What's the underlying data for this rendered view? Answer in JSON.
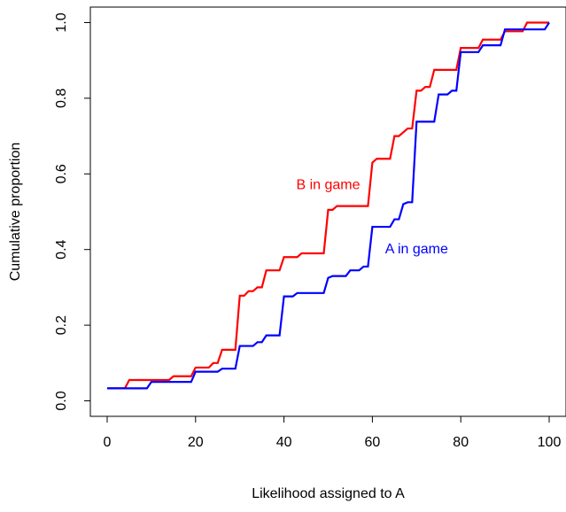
{
  "chart_data": {
    "type": "line",
    "title": "",
    "xlabel": "Likelihood assigned to A",
    "ylabel": "Cumulative proportion",
    "xlim": [
      0,
      100
    ],
    "ylim": [
      0,
      1
    ],
    "x_ticks": [
      0,
      20,
      40,
      60,
      80,
      100
    ],
    "y_ticks": [
      0.0,
      0.2,
      0.4,
      0.6,
      0.8,
      1.0
    ],
    "x_tick_labels": [
      "0",
      "20",
      "40",
      "60",
      "80",
      "100"
    ],
    "y_tick_labels": [
      "0.0",
      "0.2",
      "0.4",
      "0.6",
      "0.8",
      "1.0"
    ],
    "grid": false,
    "series": [
      {
        "name": "B in game",
        "color": "#ff0000",
        "label_anchor": [
          50,
          0.56
        ],
        "step_points": [
          [
            0,
            0.033
          ],
          [
            4,
            0.033
          ],
          [
            5,
            0.055
          ],
          [
            14,
            0.055
          ],
          [
            15,
            0.065
          ],
          [
            19,
            0.065
          ],
          [
            20,
            0.088
          ],
          [
            23,
            0.088
          ],
          [
            24,
            0.1
          ],
          [
            25,
            0.1
          ],
          [
            26,
            0.135
          ],
          [
            29,
            0.135
          ],
          [
            30,
            0.278
          ],
          [
            31,
            0.278
          ],
          [
            32,
            0.29
          ],
          [
            33,
            0.29
          ],
          [
            34,
            0.3
          ],
          [
            35,
            0.3
          ],
          [
            36,
            0.345
          ],
          [
            39,
            0.345
          ],
          [
            40,
            0.38
          ],
          [
            43,
            0.38
          ],
          [
            44,
            0.39
          ],
          [
            49,
            0.39
          ],
          [
            50,
            0.505
          ],
          [
            51,
            0.505
          ],
          [
            52,
            0.515
          ],
          [
            59,
            0.515
          ],
          [
            60,
            0.63
          ],
          [
            61,
            0.64
          ],
          [
            64,
            0.64
          ],
          [
            65,
            0.7
          ],
          [
            66,
            0.7
          ],
          [
            67,
            0.71
          ],
          [
            68,
            0.72
          ],
          [
            69,
            0.72
          ],
          [
            70,
            0.82
          ],
          [
            71,
            0.82
          ],
          [
            72,
            0.83
          ],
          [
            73,
            0.83
          ],
          [
            74,
            0.875
          ],
          [
            79,
            0.875
          ],
          [
            80,
            0.933
          ],
          [
            84,
            0.933
          ],
          [
            85,
            0.955
          ],
          [
            89,
            0.955
          ],
          [
            90,
            0.977
          ],
          [
            94,
            0.977
          ],
          [
            95,
            1.0
          ],
          [
            100,
            1.0
          ]
        ]
      },
      {
        "name": "A in game",
        "color": "#0000ff",
        "label_anchor": [
          70,
          0.39
        ],
        "step_points": [
          [
            0,
            0.033
          ],
          [
            9,
            0.033
          ],
          [
            10,
            0.05
          ],
          [
            19,
            0.05
          ],
          [
            20,
            0.077
          ],
          [
            25,
            0.077
          ],
          [
            26,
            0.085
          ],
          [
            29,
            0.085
          ],
          [
            30,
            0.145
          ],
          [
            33,
            0.145
          ],
          [
            34,
            0.155
          ],
          [
            35,
            0.155
          ],
          [
            36,
            0.173
          ],
          [
            39,
            0.173
          ],
          [
            40,
            0.276
          ],
          [
            42,
            0.276
          ],
          [
            43,
            0.285
          ],
          [
            49,
            0.285
          ],
          [
            50,
            0.325
          ],
          [
            51,
            0.33
          ],
          [
            54,
            0.33
          ],
          [
            55,
            0.345
          ],
          [
            57,
            0.345
          ],
          [
            58,
            0.355
          ],
          [
            59,
            0.355
          ],
          [
            60,
            0.46
          ],
          [
            64,
            0.46
          ],
          [
            65,
            0.48
          ],
          [
            66,
            0.48
          ],
          [
            67,
            0.52
          ],
          [
            68,
            0.525
          ],
          [
            69,
            0.525
          ],
          [
            70,
            0.738
          ],
          [
            74,
            0.738
          ],
          [
            75,
            0.81
          ],
          [
            77,
            0.81
          ],
          [
            78,
            0.82
          ],
          [
            79,
            0.82
          ],
          [
            80,
            0.922
          ],
          [
            84,
            0.922
          ],
          [
            85,
            0.94
          ],
          [
            89,
            0.94
          ],
          [
            90,
            0.982
          ],
          [
            99,
            0.982
          ],
          [
            100,
            1.0
          ]
        ]
      }
    ]
  }
}
